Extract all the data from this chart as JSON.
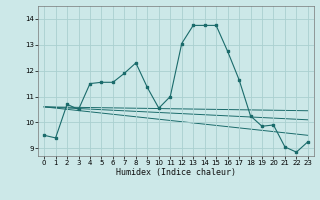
{
  "xlabel": "Humidex (Indice chaleur)",
  "background_color": "#cce8e8",
  "grid_color": "#aad0d0",
  "line_color": "#1a6b6b",
  "xlim": [
    -0.5,
    23.5
  ],
  "ylim": [
    8.7,
    14.5
  ],
  "yticks": [
    9,
    10,
    11,
    12,
    13,
    14
  ],
  "xticks": [
    0,
    1,
    2,
    3,
    4,
    5,
    6,
    7,
    8,
    9,
    10,
    11,
    12,
    13,
    14,
    15,
    16,
    17,
    18,
    19,
    20,
    21,
    22,
    23
  ],
  "main_line": {
    "x": [
      0,
      1,
      2,
      3,
      4,
      5,
      6,
      7,
      8,
      9,
      10,
      11,
      12,
      13,
      14,
      15,
      16,
      17,
      18,
      19,
      20,
      21,
      22,
      23
    ],
    "y": [
      9.5,
      9.4,
      10.7,
      10.5,
      11.5,
      11.55,
      11.55,
      11.9,
      12.3,
      11.35,
      10.55,
      11.0,
      13.05,
      13.75,
      13.75,
      13.75,
      12.75,
      11.65,
      10.25,
      9.85,
      9.9,
      9.05,
      8.85,
      9.25
    ]
  },
  "trend_lines": [
    {
      "x0": 0,
      "y0": 10.6,
      "x1": 23,
      "y1": 10.45
    },
    {
      "x0": 0,
      "y0": 10.6,
      "x1": 23,
      "y1": 10.1
    },
    {
      "x0": 0,
      "y0": 10.6,
      "x1": 23,
      "y1": 9.5
    }
  ]
}
